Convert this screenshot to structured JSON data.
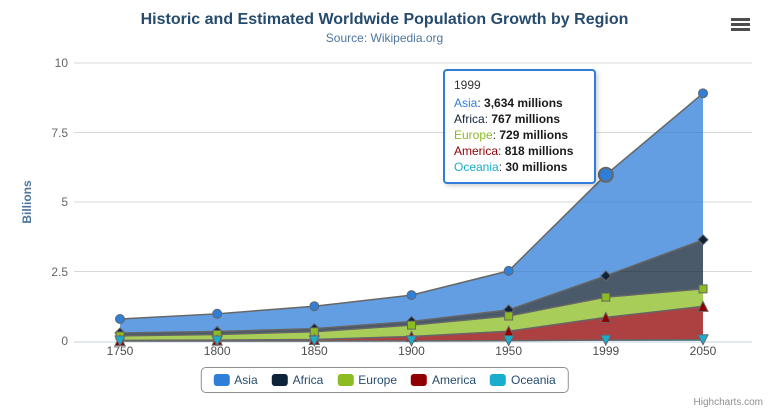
{
  "chart_data": {
    "type": "area",
    "stacking": "normal",
    "title": "Historic and Estimated Worldwide Population Growth by Region",
    "subtitle": "Source: Wikipedia.org",
    "categories": [
      "1750",
      "1800",
      "1850",
      "1900",
      "1950",
      "1999",
      "2050"
    ],
    "xlabel": "",
    "ylabel": "Billions",
    "unit": "millions",
    "ylim": [
      0,
      10
    ],
    "yticks": [
      0,
      2.5,
      5,
      7.5,
      10
    ],
    "grid": true,
    "legend_position": "bottom",
    "series": [
      {
        "name": "Asia",
        "color": "#2f7ed8",
        "marker": "circle",
        "values": [
          502,
          635,
          809,
          947,
          1402,
          3634,
          5268
        ]
      },
      {
        "name": "Africa",
        "color": "#0d233a",
        "marker": "diamond",
        "values": [
          106,
          107,
          111,
          133,
          221,
          767,
          1766
        ]
      },
      {
        "name": "Europe",
        "color": "#8bbc21",
        "marker": "square",
        "values": [
          163,
          203,
          276,
          408,
          547,
          729,
          628
        ]
      },
      {
        "name": "America",
        "color": "#910000",
        "marker": "triangle",
        "values": [
          18,
          31,
          54,
          156,
          339,
          818,
          1201
        ]
      },
      {
        "name": "Oceania",
        "color": "#1aadce",
        "marker": "triangle-down",
        "values": [
          2,
          2,
          2,
          6,
          13,
          30,
          46
        ]
      }
    ],
    "hover": {
      "category": "1999",
      "series": "Asia"
    }
  },
  "tooltip": {
    "header": "1999",
    "border_color": "#2f7ed8",
    "rows": [
      {
        "name": "Asia",
        "color": "#2f7ed8",
        "value": "3,634 millions"
      },
      {
        "name": "Africa",
        "color": "#0d233a",
        "value": "767 millions"
      },
      {
        "name": "Europe",
        "color": "#8bbc21",
        "value": "729 millions"
      },
      {
        "name": "America",
        "color": "#910000",
        "value": "818 millions"
      },
      {
        "name": "Oceania",
        "color": "#1aadce",
        "value": "30 millions"
      }
    ]
  },
  "export_menu": {
    "icon": "hamburger-menu-icon"
  },
  "credits": {
    "label": "Highcharts.com"
  },
  "theme": {
    "title_color": "#274b6d",
    "subtitle_color": "#4d759e",
    "axis_title_color": "#4d759e",
    "legend_text_color": "#274b6d",
    "gridline_color": "#d8d8d8",
    "axis_line_color": "#c0d0e0",
    "series_line_color": "#666666",
    "fill_opacity": 0.75
  }
}
